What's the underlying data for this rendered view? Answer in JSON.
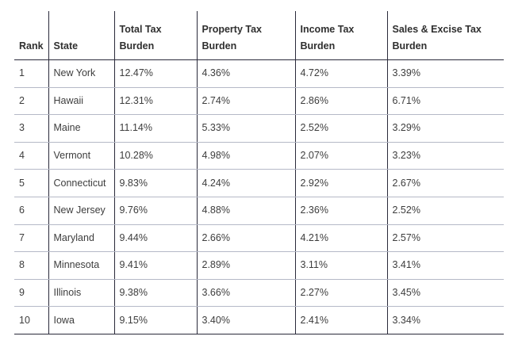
{
  "table": {
    "headers": [
      "Rank",
      "State",
      "Total Tax Burden",
      "Property Tax Burden",
      "Income Tax Burden",
      "Sales & Excise Tax Burden"
    ],
    "rows": [
      [
        "1",
        "New York",
        "12.47%",
        "4.36%",
        "4.72%",
        "3.39%"
      ],
      [
        "2",
        "Hawaii",
        "12.31%",
        "2.74%",
        "2.86%",
        "6.71%"
      ],
      [
        "3",
        "Maine",
        "11.14%",
        "5.33%",
        "2.52%",
        "3.29%"
      ],
      [
        "4",
        "Vermont",
        "10.28%",
        "4.98%",
        "2.07%",
        "3.23%"
      ],
      [
        "5",
        "Connecticut",
        "9.83%",
        "4.24%",
        "2.92%",
        "2.67%"
      ],
      [
        "6",
        "New Jersey",
        "9.76%",
        "4.88%",
        "2.36%",
        "2.52%"
      ],
      [
        "7",
        "Maryland",
        "9.44%",
        "2.66%",
        "4.21%",
        "2.57%"
      ],
      [
        "8",
        "Minnesota",
        "9.41%",
        "2.89%",
        "3.11%",
        "3.41%"
      ],
      [
        "9",
        "Illinois",
        "9.38%",
        "3.66%",
        "2.27%",
        "3.45%"
      ],
      [
        "10",
        "Iowa",
        "9.15%",
        "3.40%",
        "2.41%",
        "3.34%"
      ]
    ]
  }
}
